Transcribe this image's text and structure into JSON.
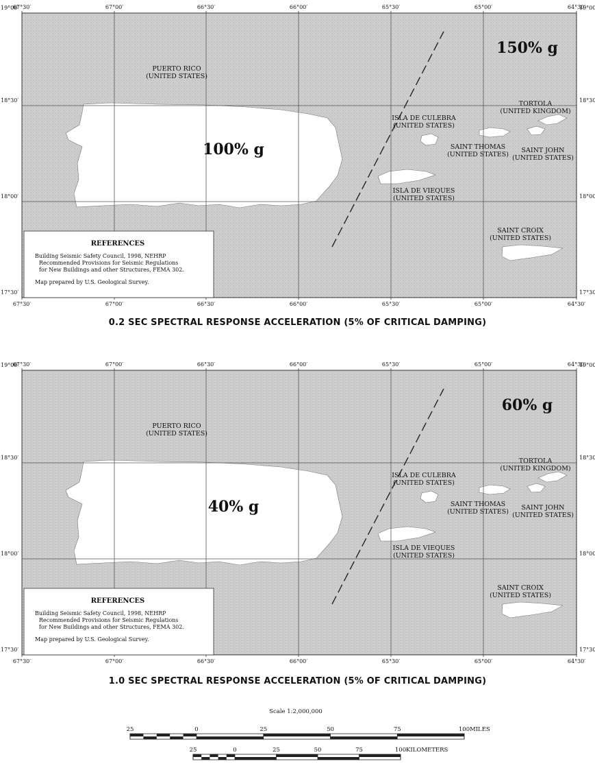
{
  "maps": [
    {
      "id": "top",
      "caption": "0.2 SEC SPECTRAL RESPONSE ACCELERATION (5% OF CRITICAL DAMPING)",
      "value_east": "150% g",
      "value_west": "100% g"
    },
    {
      "id": "bottom",
      "caption": "1.0 SEC SPECTRAL RESPONSE ACCELERATION (5% OF CRITICAL DAMPING)",
      "value_east": "60% g",
      "value_west": "40% g"
    }
  ],
  "lon_labels": [
    "67°30′",
    "67°00′",
    "66°30′",
    "66°00′",
    "65°30′",
    "65°00′",
    "64°30′"
  ],
  "lat_labels": [
    "19°00′",
    "18°30′",
    "18°00′",
    "17°30′"
  ],
  "places": {
    "puerto_rico": [
      "PUERTO RICO",
      "(UNITED STATES)"
    ],
    "tortola": [
      "TORTOLA",
      "(UNITED KINGDOM)"
    ],
    "culebra": [
      "ISLA DE CULEBRA",
      "(UNITED STATES)"
    ],
    "saint_thomas": [
      "SAINT THOMAS",
      "(UNITED STATES)"
    ],
    "saint_john": [
      "SAINT JOHN",
      "(UNITED STATES)"
    ],
    "vieques": [
      "ISLA DE VIEQUES",
      "(UNITED STATES)"
    ],
    "saint_croix": [
      "SAINT CROIX",
      "(UNITED STATES)"
    ]
  },
  "references": {
    "title": "REFERENCES",
    "lines": [
      "Building Seismic Safety Council, 1998, NEHRP",
      "Recommended Provisions for Seismic Regulations",
      "for New Buildings and other Structures, FEMA 302."
    ],
    "prepared": "Map prepared by U.S. Geological Survey."
  },
  "scale": {
    "label": "Scale  1:2,000,000",
    "miles": {
      "ticks": [
        "25",
        "0",
        "25",
        "50",
        "75",
        "100"
      ],
      "unit": "MILES"
    },
    "kilometers": {
      "ticks": [
        "25",
        "0",
        "25",
        "50",
        "75",
        "100"
      ],
      "unit": "KILOMETERS"
    }
  },
  "colors": {
    "sea": "#cfcfcf",
    "land": "#ffffff",
    "grid": "#555555"
  }
}
